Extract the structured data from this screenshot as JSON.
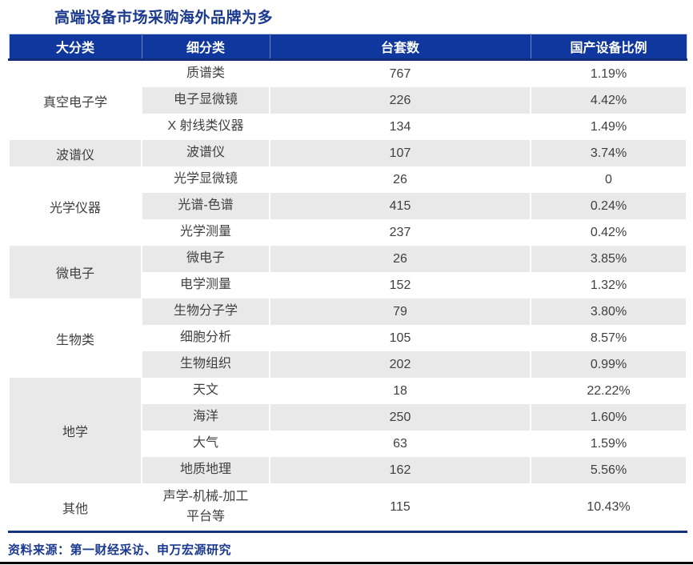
{
  "title": "高端设备市场采购海外品牌为多",
  "source": "资料来源：第一财经采访、申万宏源研究",
  "colors": {
    "header_bg": "#0F379D",
    "header_border_dark": "#122E77",
    "title_navy": "#1B3A8F",
    "stripe_gray": "#E9E9E9",
    "body_text": "#3F3F3F",
    "bottom_bar": "#000000"
  },
  "table": {
    "headers": [
      "大分类",
      "细分类",
      "台套数",
      "国产设备比例"
    ],
    "groups": [
      {
        "category": "真空电子学",
        "rows": [
          {
            "sub": "质谱类",
            "count": "767",
            "ratio": "1.19%"
          },
          {
            "sub": "电子显微镜",
            "count": "226",
            "ratio": "4.42%"
          },
          {
            "sub": "X 射线类仪器",
            "count": "134",
            "ratio": "1.49%"
          }
        ]
      },
      {
        "category": "波谱仪",
        "rows": [
          {
            "sub": "波谱仪",
            "count": "107",
            "ratio": "3.74%"
          }
        ]
      },
      {
        "category": "光学仪器",
        "rows": [
          {
            "sub": "光学显微镜",
            "count": "26",
            "ratio": "0"
          },
          {
            "sub": "光谱-色谱",
            "count": "415",
            "ratio": "0.24%"
          },
          {
            "sub": "光学测量",
            "count": "237",
            "ratio": "0.42%"
          }
        ]
      },
      {
        "category": "微电子",
        "rows": [
          {
            "sub": "微电子",
            "count": "26",
            "ratio": "3.85%"
          },
          {
            "sub": "电学测量",
            "count": "152",
            "ratio": "1.32%"
          }
        ]
      },
      {
        "category": "生物类",
        "rows": [
          {
            "sub": "生物分子学",
            "count": "79",
            "ratio": "3.80%"
          },
          {
            "sub": "细胞分析",
            "count": "105",
            "ratio": "8.57%"
          },
          {
            "sub": "生物组织",
            "count": "202",
            "ratio": "0.99%"
          }
        ]
      },
      {
        "category": "地学",
        "rows": [
          {
            "sub": "天文",
            "count": "18",
            "ratio": "22.22%"
          },
          {
            "sub": "海洋",
            "count": "250",
            "ratio": "1.60%"
          },
          {
            "sub": "大气",
            "count": "63",
            "ratio": "1.59%"
          },
          {
            "sub": "地质地理",
            "count": "162",
            "ratio": "5.56%"
          }
        ]
      },
      {
        "category": "其他",
        "rows": [
          {
            "sub": "声学-机械-加工\n平台等",
            "count": "115",
            "ratio": "10.43%"
          }
        ]
      }
    ]
  }
}
